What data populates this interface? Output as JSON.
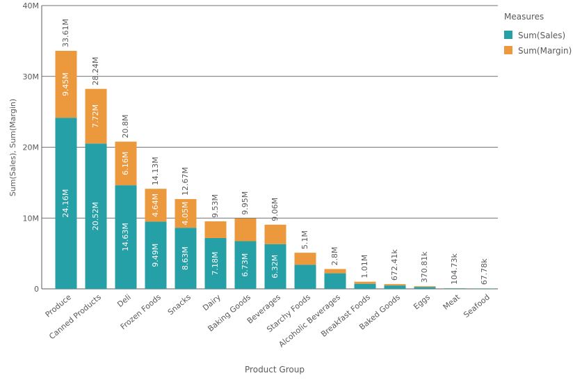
{
  "chart_data": {
    "type": "bar",
    "stacked": true,
    "xlabel": "Product Group",
    "ylabel": "Sum(Sales), Sum(Margin)",
    "ylim": [
      0,
      40000000
    ],
    "yticks": [
      "0",
      "10M",
      "20M",
      "30M",
      "40M"
    ],
    "grid": true,
    "legend": {
      "title": "Measures",
      "placement": "right"
    },
    "categories": [
      "Produce",
      "Canned Products",
      "Deli",
      "Frozen Foods",
      "Snacks",
      "Dairy",
      "Baking Goods",
      "Beverages",
      "Starchy Foods",
      "Alcoholic Beverages",
      "Breakfast Foods",
      "Baked Goods",
      "Eggs",
      "Meat",
      "Seafood"
    ],
    "series": [
      {
        "name": "Sum(Sales)",
        "color": "#26a0a7",
        "values": [
          24160000,
          20520000,
          14630000,
          9490000,
          8630000,
          7180000,
          6730000,
          6320000,
          3400000,
          2200000,
          720000,
          480000,
          260000,
          75000,
          48000
        ],
        "labels": [
          "24.16M",
          "20.52M",
          "14.63M",
          "9.49M",
          "8.63M",
          "7.18M",
          "6.73M",
          "6.32M",
          "",
          "",
          "",
          "",
          "",
          "",
          ""
        ]
      },
      {
        "name": "Sum(Margin)",
        "color": "#ec983d",
        "values": [
          9450000,
          7720000,
          6160000,
          4640000,
          4050000,
          2350000,
          3220000,
          2740000,
          1700000,
          600000,
          290000,
          192410,
          110810,
          29730,
          19780
        ],
        "labels": [
          "9.45M",
          "7.72M",
          "6.16M",
          "4.64M",
          "4.05M",
          "",
          "",
          "",
          "",
          "",
          "",
          "",
          "",
          "",
          ""
        ]
      }
    ],
    "totals": [
      "33.61M",
      "28.24M",
      "20.8M",
      "14.13M",
      "12.67M",
      "9.53M",
      "9.95M",
      "9.06M",
      "5.1M",
      "2.8M",
      "1.01M",
      "672.41k",
      "370.81k",
      "104.73k",
      "67.78k"
    ]
  }
}
